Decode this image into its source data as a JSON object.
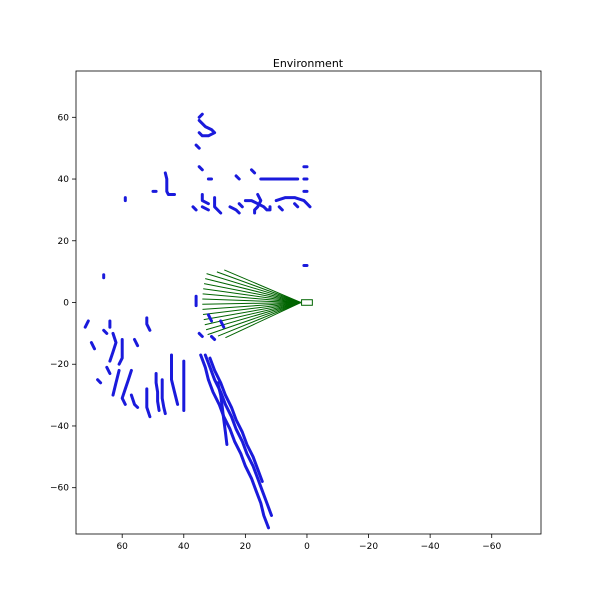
{
  "chart_data": {
    "type": "scatter",
    "title": "Environment",
    "xlim": [
      75,
      -76
    ],
    "ylim": [
      -75,
      75
    ],
    "x_ticks": [
      60,
      40,
      20,
      0,
      -20,
      -40,
      -60
    ],
    "x_tick_labels": [
      "60",
      "40",
      "20",
      "0",
      "−20",
      "−40",
      "−60"
    ],
    "y_ticks": [
      60,
      40,
      20,
      0,
      -20,
      -40,
      -60
    ],
    "y_tick_labels": [
      "60",
      "40",
      "20",
      "0",
      "−20",
      "−40",
      "−60"
    ],
    "grid": false,
    "colors": {
      "obstacles": "#1a1adc",
      "rays": "#006400",
      "vehicle": "#006400"
    },
    "vehicle": {
      "center": [
        0,
        0
      ],
      "length": 3.5,
      "width": 1.8
    },
    "rays": {
      "origin": [
        2,
        0
      ],
      "angles_deg": [
        155,
        158,
        161,
        164,
        167,
        170,
        173,
        176,
        179,
        182,
        185,
        188,
        191,
        194,
        197,
        200,
        203
      ],
      "lengths": [
        27,
        29,
        32,
        32,
        32,
        32,
        32,
        32,
        32,
        32,
        32,
        32,
        32,
        32,
        32,
        29,
        27
      ]
    },
    "obstacles": [
      {
        "points": [
          [
            34.5,
            -17
          ],
          [
            33,
            -21
          ],
          [
            32,
            -25
          ],
          [
            30.5,
            -29
          ],
          [
            28.5,
            -33
          ],
          [
            27,
            -37
          ],
          [
            25,
            -41
          ],
          [
            23.5,
            -45
          ],
          [
            21.5,
            -49
          ],
          [
            20,
            -53
          ],
          [
            18,
            -57
          ],
          [
            16.5,
            -61
          ],
          [
            15,
            -65
          ],
          [
            14,
            -69
          ],
          [
            12.5,
            -73
          ]
        ]
      },
      {
        "points": [
          [
            33,
            -17
          ],
          [
            31.5,
            -21
          ],
          [
            30,
            -25
          ],
          [
            28,
            -29
          ],
          [
            26.5,
            -33
          ],
          [
            24.5,
            -37
          ],
          [
            23,
            -41
          ],
          [
            21,
            -45
          ],
          [
            19.5,
            -49
          ],
          [
            17.5,
            -53
          ],
          [
            16,
            -57
          ],
          [
            14.5,
            -61
          ],
          [
            13,
            -65
          ],
          [
            11.5,
            -69
          ]
        ]
      },
      {
        "points": [
          [
            31.5,
            -18
          ],
          [
            30,
            -22
          ],
          [
            28,
            -26
          ],
          [
            26.5,
            -30
          ],
          [
            24.5,
            -34
          ],
          [
            23,
            -38
          ],
          [
            21,
            -42
          ],
          [
            19.5,
            -46
          ],
          [
            17.5,
            -50
          ],
          [
            16,
            -54
          ],
          [
            14.5,
            -58
          ]
        ]
      },
      {
        "points": [
          [
            29,
            -26
          ],
          [
            28,
            -30
          ],
          [
            27.5,
            -34
          ],
          [
            27,
            -38
          ],
          [
            26.5,
            -42
          ],
          [
            26,
            -46
          ]
        ]
      },
      {
        "points": [
          [
            40,
            -19
          ],
          [
            40,
            -23
          ],
          [
            40,
            -27
          ],
          [
            40,
            -31
          ],
          [
            40,
            -35
          ]
        ]
      },
      {
        "points": [
          [
            44,
            -17
          ],
          [
            44,
            -21
          ],
          [
            44,
            -25
          ],
          [
            43,
            -29
          ],
          [
            42,
            -33
          ]
        ]
      },
      {
        "points": [
          [
            47,
            -25
          ],
          [
            47,
            -28
          ],
          [
            47,
            -31
          ],
          [
            46.5,
            -34
          ],
          [
            46,
            -36
          ]
        ]
      },
      {
        "points": [
          [
            49,
            -23
          ],
          [
            49,
            -26
          ],
          [
            48.5,
            -29
          ],
          [
            48.5,
            -32
          ],
          [
            48,
            -35
          ]
        ]
      },
      {
        "points": [
          [
            52,
            -28
          ],
          [
            52,
            -31
          ],
          [
            52,
            -34
          ],
          [
            51,
            -37
          ]
        ]
      },
      {
        "points": [
          [
            57,
            -22
          ],
          [
            58,
            -25
          ],
          [
            59,
            -28
          ],
          [
            60,
            -31
          ],
          [
            59,
            -33
          ]
        ]
      },
      {
        "points": [
          [
            60,
            -12
          ],
          [
            60,
            -15
          ],
          [
            60,
            -18
          ],
          [
            61,
            -20
          ]
        ]
      },
      {
        "points": [
          [
            63,
            -10
          ],
          [
            62,
            -13
          ],
          [
            63,
            -16
          ],
          [
            64,
            -19
          ]
        ]
      },
      {
        "points": [
          [
            61,
            -22
          ],
          [
            62,
            -26
          ],
          [
            63,
            -30
          ]
        ]
      },
      {
        "points": [
          [
            57,
            -30
          ],
          [
            56,
            -33
          ],
          [
            55,
            -34
          ]
        ]
      },
      {
        "points": [
          [
            52,
            -5
          ],
          [
            52,
            -7
          ],
          [
            51,
            -9
          ]
        ]
      },
      {
        "points": [
          [
            56,
            -12
          ],
          [
            55,
            -14
          ]
        ]
      },
      {
        "points": [
          [
            64,
            -6
          ],
          [
            64,
            -8
          ]
        ]
      },
      {
        "points": [
          [
            71,
            -6
          ],
          [
            72,
            -8
          ]
        ]
      },
      {
        "points": [
          [
            70,
            -13
          ],
          [
            69,
            -15
          ]
        ]
      },
      {
        "points": [
          [
            68,
            -25
          ],
          [
            67,
            -26
          ]
        ]
      },
      {
        "points": [
          [
            65,
            -21
          ],
          [
            64,
            -23
          ]
        ]
      },
      {
        "points": [
          [
            66,
            -9
          ],
          [
            65,
            -10
          ]
        ]
      },
      {
        "points": [
          [
            66,
            9
          ],
          [
            66,
            8
          ]
        ]
      },
      {
        "points": [
          [
            59,
            34
          ],
          [
            59,
            33
          ]
        ]
      },
      {
        "points": [
          [
            36,
            -1
          ],
          [
            36,
            0
          ],
          [
            36,
            1
          ],
          [
            36,
            2
          ]
        ]
      },
      {
        "points": [
          [
            32,
            -4
          ],
          [
            31,
            -6
          ]
        ]
      },
      {
        "points": [
          [
            28,
            -6
          ],
          [
            27,
            -8
          ]
        ]
      },
      {
        "points": [
          [
            31,
            -11
          ],
          [
            30,
            -12
          ]
        ]
      },
      {
        "points": [
          [
            35,
            -10
          ],
          [
            34,
            -11
          ]
        ]
      },
      {
        "points": [
          [
            46,
            42
          ],
          [
            45.5,
            40
          ],
          [
            45.5,
            38
          ],
          [
            45.5,
            36
          ],
          [
            45,
            35
          ],
          [
            44,
            35
          ],
          [
            43,
            35
          ]
        ]
      },
      {
        "points": [
          [
            50,
            36
          ],
          [
            49,
            36
          ]
        ]
      },
      {
        "points": [
          [
            35,
            59
          ],
          [
            33,
            57
          ],
          [
            31,
            56
          ],
          [
            30,
            55
          ],
          [
            32,
            54
          ],
          [
            34,
            54
          ],
          [
            35,
            55
          ]
        ]
      },
      {
        "points": [
          [
            35,
            60
          ],
          [
            34,
            61
          ]
        ]
      },
      {
        "points": [
          [
            36,
            51
          ],
          [
            35,
            50
          ]
        ]
      },
      {
        "points": [
          [
            35,
            44
          ],
          [
            34,
            43
          ]
        ]
      },
      {
        "points": [
          [
            32,
            40
          ],
          [
            31,
            40
          ]
        ]
      },
      {
        "points": [
          [
            23,
            41
          ],
          [
            22,
            40
          ]
        ]
      },
      {
        "points": [
          [
            15,
            40
          ],
          [
            12,
            40
          ],
          [
            9,
            40
          ],
          [
            6,
            40
          ],
          [
            3,
            40
          ]
        ]
      },
      {
        "points": [
          [
            18,
            43
          ],
          [
            17,
            42
          ]
        ]
      },
      {
        "points": [
          [
            1,
            44
          ],
          [
            0,
            44
          ]
        ]
      },
      {
        "points": [
          [
            1,
            40
          ],
          [
            0,
            40
          ]
        ]
      },
      {
        "points": [
          [
            1,
            36
          ],
          [
            0,
            36
          ]
        ]
      },
      {
        "points": [
          [
            34,
            35
          ],
          [
            34,
            33
          ],
          [
            32,
            32
          ]
        ]
      },
      {
        "points": [
          [
            30,
            34
          ],
          [
            30,
            31
          ],
          [
            28,
            29
          ]
        ]
      },
      {
        "points": [
          [
            25,
            31
          ],
          [
            23,
            30
          ],
          [
            22,
            29
          ]
        ]
      },
      {
        "points": [
          [
            34,
            31
          ],
          [
            32,
            30
          ]
        ]
      },
      {
        "points": [
          [
            37,
            31
          ],
          [
            36,
            30
          ]
        ]
      },
      {
        "points": [
          [
            16,
            35
          ],
          [
            15,
            33
          ],
          [
            16,
            31
          ],
          [
            17,
            30
          ],
          [
            17,
            29
          ]
        ]
      },
      {
        "points": [
          [
            20,
            33
          ],
          [
            18,
            33
          ],
          [
            16,
            32
          ],
          [
            14,
            31
          ],
          [
            13,
            30
          ],
          [
            12,
            30
          ],
          [
            12,
            31
          ]
        ]
      },
      {
        "points": [
          [
            10,
            33
          ],
          [
            7,
            34
          ],
          [
            4,
            34
          ],
          [
            1,
            33
          ],
          [
            0,
            32
          ],
          [
            -1,
            31
          ]
        ]
      },
      {
        "points": [
          [
            4,
            32
          ],
          [
            3,
            31
          ]
        ]
      },
      {
        "points": [
          [
            9,
            31
          ],
          [
            8,
            30
          ]
        ]
      },
      {
        "points": [
          [
            1,
            12
          ],
          [
            0,
            12
          ]
        ]
      },
      {
        "points": [
          [
            22,
            32
          ],
          [
            21,
            31
          ]
        ]
      }
    ]
  }
}
